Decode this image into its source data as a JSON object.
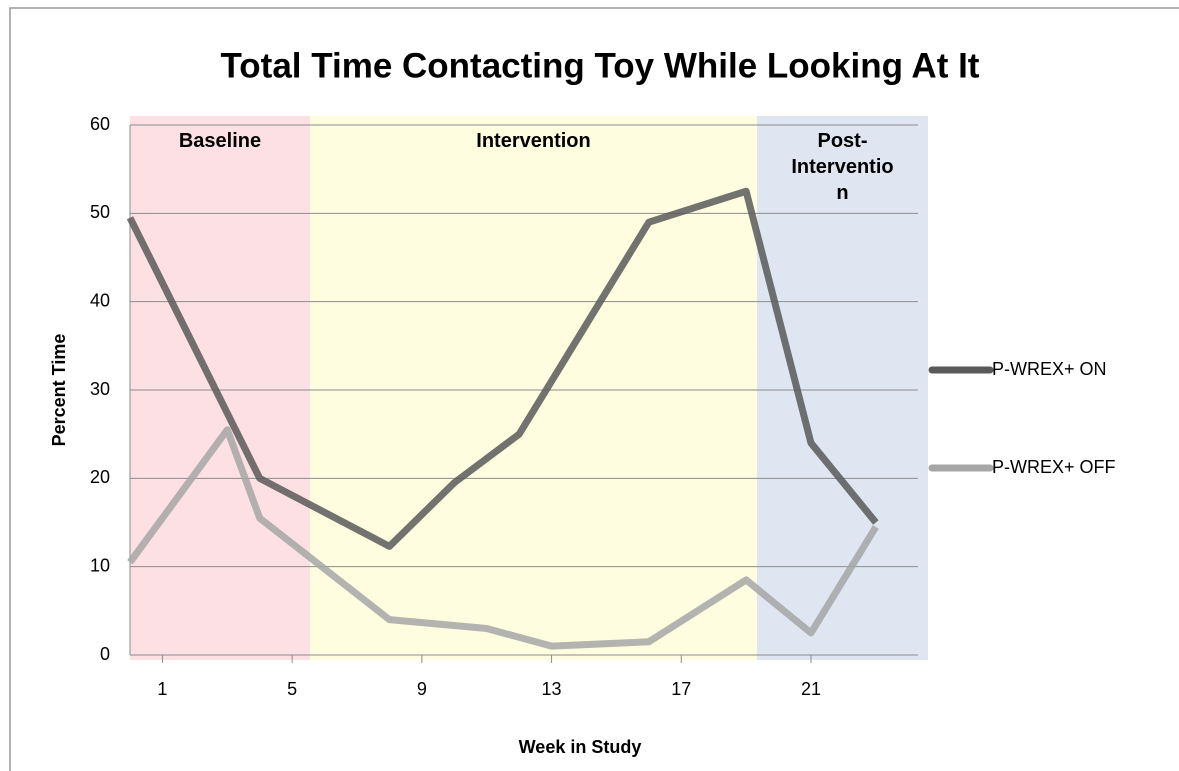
{
  "chart_data": {
    "type": "line",
    "title": "Total Time Contacting Toy While Looking At It",
    "x_label": "Week in Study",
    "y_label": "Percent Time",
    "phases": [
      "Baseline",
      "Intervention",
      "Post-Intervention"
    ],
    "series": [
      {
        "name": "P-WREX+ ON",
        "color": "#595959",
        "x": [
          0,
          4,
          8,
          10,
          12,
          16,
          19,
          21,
          23
        ],
        "values": [
          49.5,
          20,
          12.3,
          19.5,
          25,
          49,
          52.5,
          24,
          15
        ]
      },
      {
        "name": "P-WREX+ OFF",
        "color": "#a6a6a6",
        "x": [
          0,
          3,
          4,
          8,
          11,
          13,
          16,
          19,
          21,
          23
        ],
        "values": [
          10.5,
          25.5,
          15.5,
          4,
          3,
          1,
          1.5,
          8.5,
          2.5,
          14.5
        ]
      }
    ],
    "xlim": [
      0,
      24.3
    ],
    "xticks": [
      1,
      5,
      9,
      13,
      17,
      21
    ],
    "ylim": [
      0,
      60
    ],
    "yticks": [
      0,
      10,
      20,
      30,
      40,
      50,
      60
    ],
    "grid": true,
    "legend": "right"
  }
}
